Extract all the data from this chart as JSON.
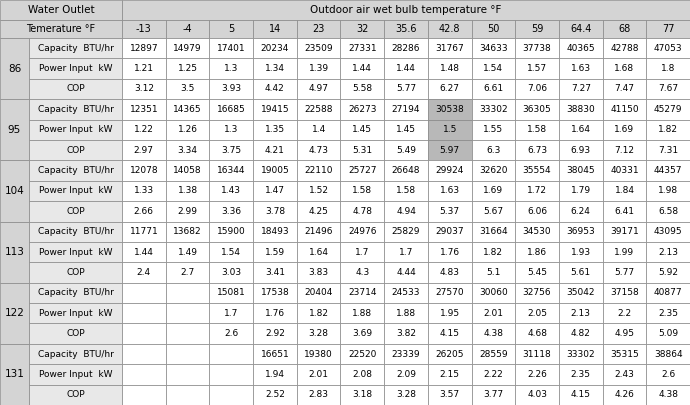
{
  "header_row1": [
    "Water Outlet",
    "Outdoor air wet bulb temperature °F"
  ],
  "header_row2": [
    "Temerature °F",
    "-13",
    "-4",
    "5",
    "14",
    "23",
    "32",
    "35.6",
    "42.8",
    "50",
    "59",
    "64.4",
    "68",
    "77"
  ],
  "temp_labels": [
    "86",
    "95",
    "104",
    "113",
    "122",
    "131"
  ],
  "row_labels": [
    "Capacity  BTU/hr",
    "Power Input  kW",
    "COP"
  ],
  "data": {
    "86": {
      "Capacity  BTU/hr": [
        "12897",
        "14979",
        "17401",
        "20234",
        "23509",
        "27331",
        "28286",
        "31767",
        "34633",
        "37738",
        "40365",
        "42788",
        "47053"
      ],
      "Power Input  kW": [
        "1.21",
        "1.25",
        "1.3",
        "1.34",
        "1.39",
        "1.44",
        "1.44",
        "1.48",
        "1.54",
        "1.57",
        "1.63",
        "1.68",
        "1.8"
      ],
      "COP": [
        "3.12",
        "3.5",
        "3.93",
        "4.42",
        "4.97",
        "5.58",
        "5.77",
        "6.27",
        "6.61",
        "7.06",
        "7.27",
        "7.47",
        "7.67"
      ]
    },
    "95": {
      "Capacity  BTU/hr": [
        "12351",
        "14365",
        "16685",
        "19415",
        "22588",
        "26273",
        "27194",
        "30538",
        "33302",
        "36305",
        "38830",
        "41150",
        "45279"
      ],
      "Power Input  kW": [
        "1.22",
        "1.26",
        "1.3",
        "1.35",
        "1.4",
        "1.45",
        "1.45",
        "1.5",
        "1.55",
        "1.58",
        "1.64",
        "1.69",
        "1.82"
      ],
      "COP": [
        "2.97",
        "3.34",
        "3.75",
        "4.21",
        "4.73",
        "5.31",
        "5.49",
        "5.97",
        "6.3",
        "6.73",
        "6.93",
        "7.12",
        "7.31"
      ]
    },
    "104": {
      "Capacity  BTU/hr": [
        "12078",
        "14058",
        "16344",
        "19005",
        "22110",
        "25727",
        "26648",
        "29924",
        "32620",
        "35554",
        "38045",
        "40331",
        "44357"
      ],
      "Power Input  kW": [
        "1.33",
        "1.38",
        "1.43",
        "1.47",
        "1.52",
        "1.58",
        "1.58",
        "1.63",
        "1.69",
        "1.72",
        "1.79",
        "1.84",
        "1.98"
      ],
      "COP": [
        "2.66",
        "2.99",
        "3.36",
        "3.78",
        "4.25",
        "4.78",
        "4.94",
        "5.37",
        "5.67",
        "6.06",
        "6.24",
        "6.41",
        "6.58"
      ]
    },
    "113": {
      "Capacity  BTU/hr": [
        "11771",
        "13682",
        "15900",
        "18493",
        "21496",
        "24976",
        "25829",
        "29037",
        "31664",
        "34530",
        "36953",
        "39171",
        "43095"
      ],
      "Power Input  kW": [
        "1.44",
        "1.49",
        "1.54",
        "1.59",
        "1.64",
        "1.7",
        "1.7",
        "1.76",
        "1.82",
        "1.86",
        "1.93",
        "1.99",
        "2.13"
      ],
      "COP": [
        "2.4",
        "2.7",
        "3.03",
        "3.41",
        "3.83",
        "4.3",
        "4.44",
        "4.83",
        "5.1",
        "5.45",
        "5.61",
        "5.77",
        "5.92"
      ]
    },
    "122": {
      "Capacity  BTU/hr": [
        "",
        "",
        "15081",
        "17538",
        "20404",
        "23714",
        "24533",
        "27570",
        "30060",
        "32756",
        "35042",
        "37158",
        "40877"
      ],
      "Power Input  kW": [
        "",
        "",
        "1.7",
        "1.76",
        "1.82",
        "1.88",
        "1.88",
        "1.95",
        "2.01",
        "2.05",
        "2.13",
        "2.2",
        "2.35"
      ],
      "COP": [
        "",
        "",
        "2.6",
        "2.92",
        "3.28",
        "3.69",
        "3.82",
        "4.15",
        "4.38",
        "4.68",
        "4.82",
        "4.95",
        "5.09"
      ]
    },
    "131": {
      "Capacity  BTU/hr": [
        "",
        "",
        "",
        "16651",
        "19380",
        "22520",
        "23339",
        "26205",
        "28559",
        "31118",
        "33302",
        "35315",
        "38864"
      ],
      "Power Input  kW": [
        "",
        "",
        "",
        "1.94",
        "2.01",
        "2.08",
        "2.09",
        "2.15",
        "2.22",
        "2.26",
        "2.35",
        "2.43",
        "2.6"
      ],
      "COP": [
        "",
        "",
        "",
        "2.52",
        "2.83",
        "3.18",
        "3.28",
        "3.57",
        "3.77",
        "4.03",
        "4.15",
        "4.26",
        "4.38"
      ]
    }
  },
  "highlights": [
    {
      "group": "95",
      "row": "Capacity  BTU/hr",
      "col": 7
    },
    {
      "group": "95",
      "row": "Power Input  kW",
      "col": 7
    },
    {
      "group": "95",
      "row": "COP",
      "col": 7
    }
  ],
  "colors": {
    "header_bg": "#d4d4d4",
    "label_col_bg": "#e8e8e8",
    "data_bg": "#ffffff",
    "border": "#888888",
    "text": "#000000",
    "highlight_bg": "#b8b8b8"
  }
}
